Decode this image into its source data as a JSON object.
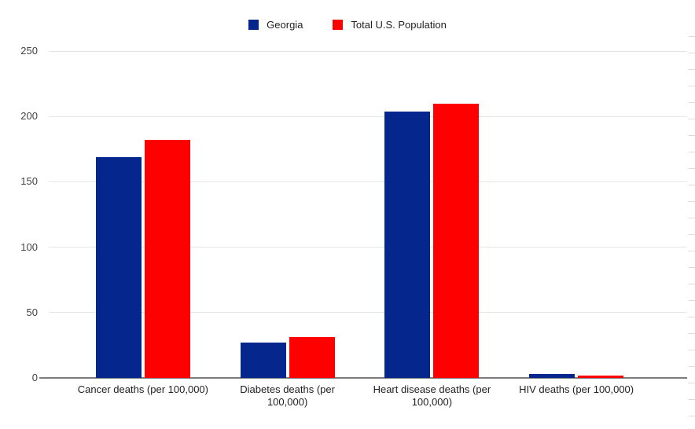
{
  "chart_data": {
    "type": "bar",
    "title": "",
    "categories": [
      "Cancer deaths (per 100,000)",
      "Diabetes deaths (per 100,000)",
      "Heart disease deaths (per 100,000)",
      "HIV deaths (per 100,000)"
    ],
    "series": [
      {
        "name": "Georgia",
        "color": "#05268d",
        "values": [
          169,
          27,
          204,
          3
        ]
      },
      {
        "name": "Total U.S. Population",
        "color": "#ff0000",
        "values": [
          182,
          31,
          210,
          1.7
        ]
      }
    ],
    "xlabel": "",
    "ylabel": "",
    "ylim": [
      0,
      250
    ],
    "yticks": [
      0,
      50,
      100,
      150,
      200,
      250
    ],
    "grid": true,
    "legend_position": "top"
  },
  "colors": {
    "background": "#ffffff",
    "gridline": "#e6e6e6",
    "axis_line": "#7d7d7d",
    "tick_text": "#444444",
    "label_text": "#1f1f1f",
    "georgia_blue": "#05268d",
    "us_red": "#ff0000"
  }
}
